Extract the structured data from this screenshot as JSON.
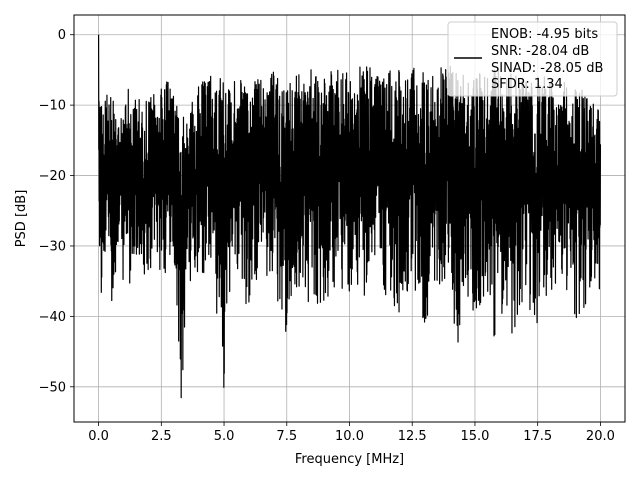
{
  "chart_data": {
    "type": "line",
    "title": "",
    "xlabel": "Frequency [MHz]",
    "ylabel": "PSD [dB]",
    "xlim": [
      -0.98,
      20.98
    ],
    "ylim": [
      -55.0,
      2.8
    ],
    "xticks": [
      0.0,
      2.5,
      5.0,
      7.5,
      10.0,
      12.5,
      15.0,
      17.5,
      20.0
    ],
    "xtick_labels": [
      "0.0",
      "2.5",
      "5.0",
      "7.5",
      "10.0",
      "12.5",
      "15.0",
      "17.5",
      "20.0"
    ],
    "yticks": [
      0,
      -10,
      -20,
      -30,
      -40,
      -50
    ],
    "ytick_labels": [
      "0",
      "−10",
      "−20",
      "−30",
      "−40",
      "−50"
    ],
    "grid": true,
    "line_color": "#000000",
    "legend": {
      "placement": "top-right",
      "entries": [
        "ENOB: -4.95 bits",
        "SNR: -28.04 dB",
        "SINAD: -28.05 dB",
        "SFDR: 1.34"
      ]
    },
    "series": [
      {
        "x": [
          0.0,
          0.1,
          0.2,
          0.3,
          0.4,
          0.5,
          0.7,
          0.9,
          1.2,
          1.5,
          1.8,
          2.2,
          2.6,
          3.0,
          3.3,
          3.5,
          3.7,
          4.0,
          4.5,
          5.0,
          5.1,
          5.5,
          6.0,
          6.2,
          6.5,
          7.0,
          7.5,
          7.8,
          8.0,
          8.5,
          9.0,
          9.5,
          10.0,
          10.5,
          11.0,
          11.5,
          12.0,
          12.5,
          12.8,
          13.0,
          13.5,
          14.0,
          14.3,
          14.5,
          15.0,
          15.5,
          15.8,
          16.0,
          16.5,
          17.0,
          17.5,
          18.0,
          18.5,
          19.0,
          19.5,
          20.0
        ],
        "upper": [
          0.0,
          -8.5,
          -9.0,
          -7.5,
          -10.0,
          -8.5,
          -8.0,
          -10.5,
          -7.0,
          -8.5,
          -9.0,
          -8.0,
          -6.5,
          -7.0,
          -7.5,
          -9.0,
          -8.0,
          -7.0,
          -5.5,
          -6.0,
          -7.5,
          -6.0,
          -7.5,
          -5.5,
          -6.5,
          -5.0,
          -7.0,
          -5.5,
          -4.0,
          -5.0,
          -6.0,
          -4.5,
          -5.5,
          -4.0,
          -4.5,
          -5.5,
          -4.0,
          -4.5,
          -5.0,
          -5.5,
          -4.5,
          -4.0,
          -5.0,
          -5.5,
          -6.0,
          -4.5,
          -5.0,
          -4.5,
          -5.5,
          -6.0,
          -5.0,
          -5.5,
          -6.0,
          -7.0,
          -8.5,
          -10.0
        ],
        "lower": [
          -27.5,
          -40.5,
          -44.5,
          -33.0,
          -34.0,
          -38.0,
          -37.0,
          -34.5,
          -37.0,
          -33.0,
          -39.5,
          -33.0,
          -35.0,
          -33.5,
          -52.5,
          -40.0,
          -36.0,
          -38.0,
          -34.0,
          -50.5,
          -40.0,
          -34.0,
          -41.0,
          -36.0,
          -35.0,
          -36.5,
          -43.0,
          -38.5,
          -36.0,
          -40.5,
          -39.0,
          -36.0,
          -37.0,
          -38.0,
          -34.5,
          -37.5,
          -40.0,
          -36.0,
          -39.0,
          -42.0,
          -36.0,
          -35.0,
          -46.5,
          -38.0,
          -40.5,
          -37.0,
          -45.5,
          -39.0,
          -44.5,
          -38.0,
          -42.5,
          -36.0,
          -38.0,
          -40.5,
          -38.0,
          -36.0
        ]
      }
    ]
  }
}
